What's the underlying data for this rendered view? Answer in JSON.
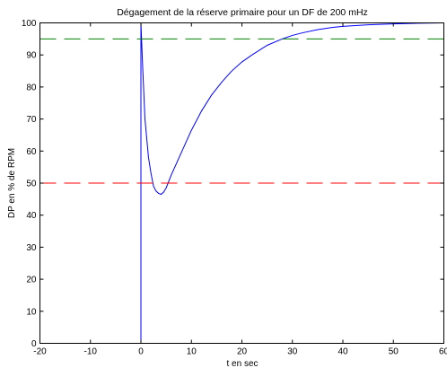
{
  "chart_data": {
    "type": "line",
    "title": "Dégagement de la réserve primaire pour un DF de 200 mHz",
    "xlabel": "t en sec",
    "ylabel": "DP en % de RPM",
    "xlim": [
      -20,
      60
    ],
    "ylim": [
      0,
      100
    ],
    "xticks": [
      -20,
      -10,
      0,
      10,
      20,
      30,
      40,
      50,
      60
    ],
    "yticks": [
      0,
      10,
      20,
      30,
      40,
      50,
      60,
      70,
      80,
      90,
      100
    ],
    "grid": false,
    "series": [
      {
        "color": "#0000ff",
        "style": "solid",
        "x": [
          -20,
          0,
          0,
          0.3,
          0.8,
          1.5,
          2,
          2.5,
          3,
          3.5,
          4,
          4.5,
          5,
          5.5,
          6,
          7,
          8,
          9,
          10,
          12,
          14,
          16,
          18,
          20,
          22,
          25,
          28,
          30,
          32,
          35,
          38,
          40,
          45,
          50,
          55,
          60
        ],
        "y": [
          0,
          0,
          100,
          88,
          70,
          58,
          53,
          49,
          47.5,
          46.8,
          46.5,
          47.2,
          48.5,
          50.5,
          52.5,
          56,
          59.5,
          63,
          66.5,
          72.5,
          77.5,
          81.5,
          85,
          87.8,
          90,
          93,
          95,
          96.1,
          96.9,
          97.9,
          98.6,
          98.9,
          99.4,
          99.7,
          99.9,
          100
        ]
      },
      {
        "color": "#008000",
        "style": "dashed",
        "x": [
          -20,
          60
        ],
        "y": [
          95,
          95
        ]
      },
      {
        "color": "#ff0000",
        "style": "dashed",
        "x": [
          -20,
          60
        ],
        "y": [
          50,
          50
        ]
      }
    ]
  }
}
